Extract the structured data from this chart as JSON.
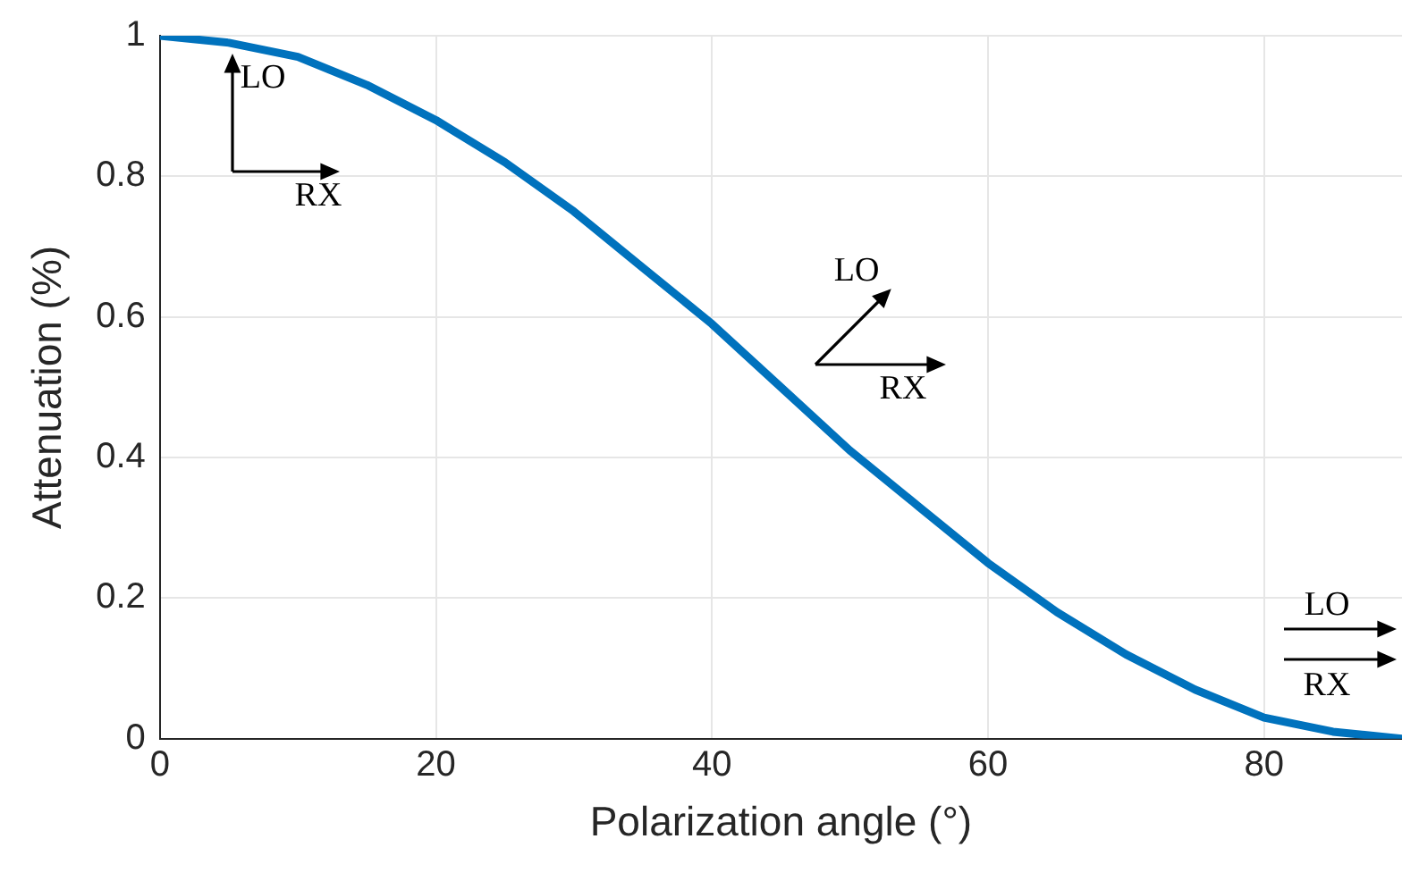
{
  "chart_data": {
    "type": "line",
    "xlabel": "Polarization angle (°)",
    "ylabel": "Attenuation (%)",
    "x": [
      0,
      5,
      10,
      15,
      20,
      25,
      30,
      35,
      40,
      45,
      50,
      55,
      60,
      65,
      70,
      75,
      80,
      85,
      90
    ],
    "series": [
      {
        "color": "#0072bd",
        "values": [
          1,
          0.99,
          0.97,
          0.93,
          0.88,
          0.82,
          0.75,
          0.67,
          0.59,
          0.5,
          0.41,
          0.33,
          0.25,
          0.18,
          0.12,
          0.07,
          0.03,
          0.01,
          0
        ]
      }
    ],
    "xlim": [
      0,
      90
    ],
    "xticks": [
      0,
      20,
      40,
      60,
      80
    ],
    "ylim": [
      0,
      1
    ],
    "yticks": [
      0,
      0.2,
      0.4,
      0.6,
      0.8,
      1
    ],
    "grid": true,
    "legend": false,
    "marker": "none",
    "line_style": "solid",
    "annotations": [
      "LO",
      "RX",
      "LO",
      "RX",
      "LO",
      "RX"
    ]
  }
}
